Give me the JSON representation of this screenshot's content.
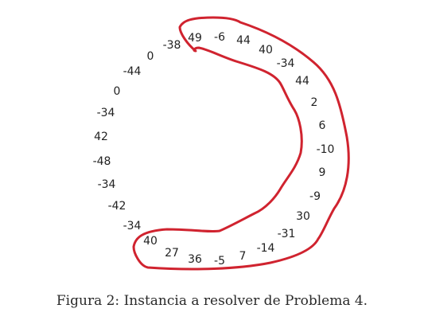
{
  "figure": {
    "numbers": [
      "-38",
      "49",
      "-6",
      "44",
      "40",
      "-34",
      "44",
      "2",
      "6",
      "-10",
      "9",
      "-9",
      "30",
      "-31",
      "-14",
      "7",
      "-5",
      "36",
      "27",
      "40",
      "-34",
      "-42",
      "-34",
      "-48",
      "42",
      "-34",
      "0",
      "-44",
      "0"
    ],
    "highlight_color": "#d0232f",
    "caption": "Figura 2: Instancia a resolver de Problema 4."
  }
}
